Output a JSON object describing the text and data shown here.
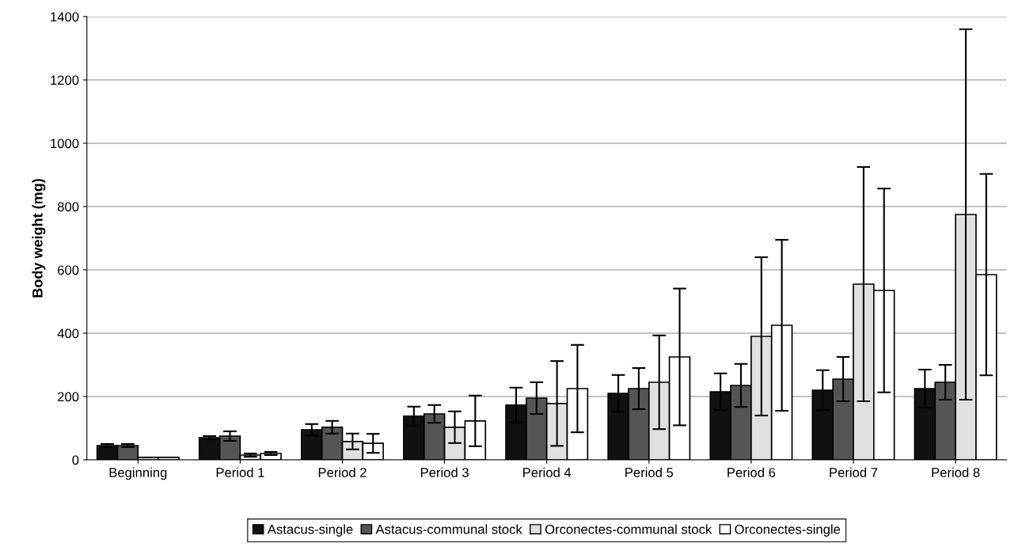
{
  "chart_data": {
    "type": "bar",
    "ylabel": "Body weight (mg)",
    "categories": [
      "Beginning",
      "Period 1",
      "Period 2",
      "Period 3",
      "Period 4",
      "Period 5",
      "Period 6",
      "Period 7",
      "Period 8"
    ],
    "series": [
      {
        "name": "Astacus-single",
        "color": "#111111",
        "values": [
          45,
          70,
          95,
          138,
          173,
          210,
          215,
          220,
          225
        ],
        "errors": [
          5,
          5,
          18,
          30,
          55,
          58,
          58,
          63,
          60
        ]
      },
      {
        "name": "Astacus-communal stock",
        "color": "#555555",
        "values": [
          45,
          75,
          103,
          145,
          195,
          225,
          235,
          255,
          245
        ],
        "errors": [
          5,
          15,
          20,
          28,
          50,
          65,
          68,
          70,
          55
        ]
      },
      {
        "name": "Orconectes-communal stock",
        "color": "#e0e0e0",
        "values": [
          8,
          15,
          58,
          103,
          178,
          245,
          390,
          555,
          775
        ],
        "errors": [
          null,
          5,
          25,
          50,
          134,
          148,
          250,
          370,
          585
        ]
      },
      {
        "name": "Orconectes-single",
        "color": "#ffffff",
        "values": [
          8,
          20,
          52,
          123,
          225,
          325,
          425,
          535,
          585
        ],
        "errors": [
          null,
          5,
          30,
          80,
          138,
          216,
          270,
          322,
          318
        ]
      }
    ],
    "ylim": [
      0,
      1400
    ],
    "yticks": [
      0,
      200,
      400,
      600,
      800,
      1000,
      1200,
      1400
    ],
    "grid": "y",
    "legend": "bottom"
  }
}
